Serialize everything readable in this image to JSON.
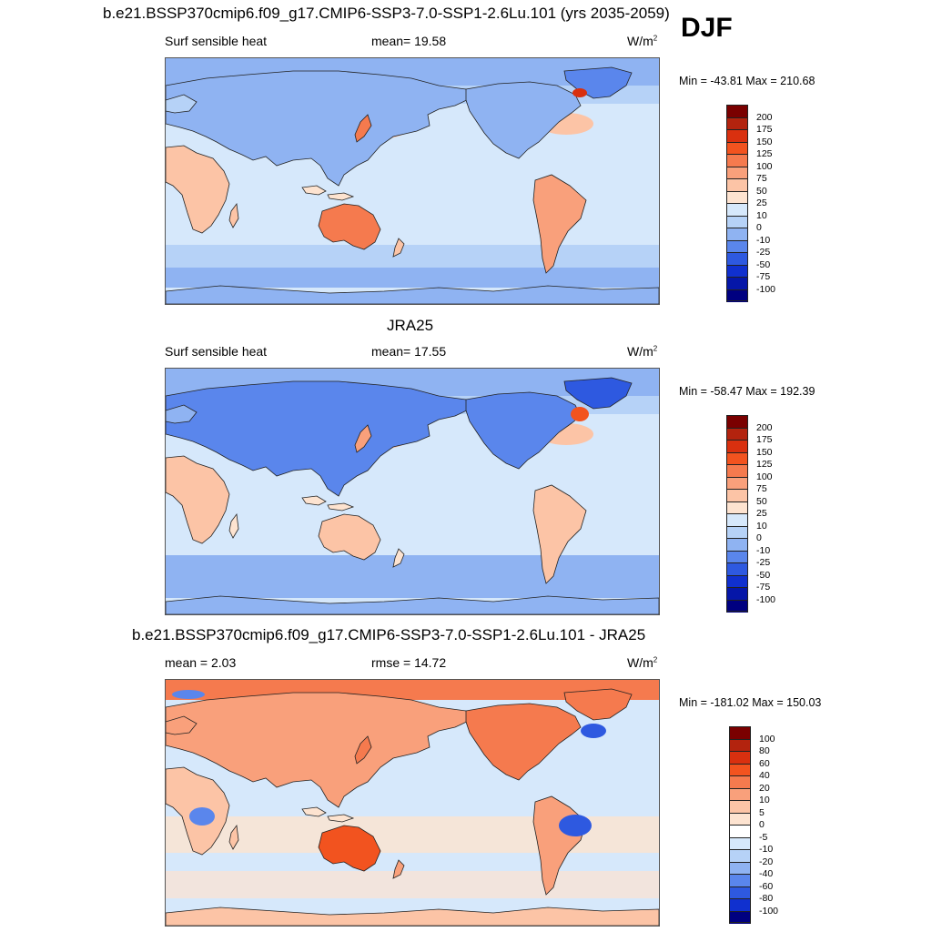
{
  "season": "DJF",
  "panels": [
    {
      "id": "model",
      "title": "b.e21.BSSP370cmip6.f09_g17.CMIP6-SSP3-7.0-SSP1-2.6Lu.101 (yrs 2035-2059)",
      "left_label": "Surf sensible heat",
      "center_label": "mean=  19.58",
      "units": "W/m",
      "units_sup": "2",
      "minmax": "Min = -43.81 Max = 210.68",
      "colorbar": {
        "labels": [
          "200",
          "175",
          "150",
          "125",
          "100",
          "75",
          "50",
          "25",
          "10",
          "0",
          "-10",
          "-25",
          "-50",
          "-75",
          "-100"
        ],
        "colors": [
          "#7a0000",
          "#b3230e",
          "#d9300f",
          "#f2531f",
          "#f57a4e",
          "#f9a07b",
          "#fcc4a6",
          "#fde3d0",
          "#d6e8fb",
          "#b6d2f7",
          "#8fb3f2",
          "#5a86ec",
          "#2e59e0",
          "#1030cf",
          "#0516a8",
          "#000080"
        ]
      },
      "map_style": "mean"
    },
    {
      "id": "obs",
      "title": "JRA25",
      "left_label": "Surf sensible heat",
      "center_label": "mean=  17.55",
      "units": "W/m",
      "units_sup": "2",
      "minmax": "Min = -58.47 Max = 192.39",
      "colorbar": {
        "labels": [
          "200",
          "175",
          "150",
          "125",
          "100",
          "75",
          "50",
          "25",
          "10",
          "0",
          "-10",
          "-25",
          "-50",
          "-75",
          "-100"
        ],
        "colors": [
          "#7a0000",
          "#b3230e",
          "#d9300f",
          "#f2531f",
          "#f57a4e",
          "#f9a07b",
          "#fcc4a6",
          "#fde3d0",
          "#d6e8fb",
          "#b6d2f7",
          "#8fb3f2",
          "#5a86ec",
          "#2e59e0",
          "#1030cf",
          "#0516a8",
          "#000080"
        ]
      },
      "map_style": "obs"
    },
    {
      "id": "diff",
      "title": "b.e21.BSSP370cmip6.f09_g17.CMIP6-SSP3-7.0-SSP1-2.6Lu.101 - JRA25",
      "left_label": "mean =   2.03",
      "center_label": "rmse =  14.72",
      "units": "W/m",
      "units_sup": "2",
      "minmax": "Min = -181.02 Max = 150.03",
      "colorbar": {
        "labels": [
          "100",
          "80",
          "60",
          "40",
          "20",
          "10",
          "5",
          "0",
          "-5",
          "-10",
          "-20",
          "-40",
          "-60",
          "-80",
          "-100"
        ],
        "colors": [
          "#7a0000",
          "#b3230e",
          "#d9300f",
          "#f2531f",
          "#f57a4e",
          "#f9a07b",
          "#fcc4a6",
          "#fde3d0",
          "#ffffff",
          "#d6e8fb",
          "#b6d2f7",
          "#8fb3f2",
          "#5a86ec",
          "#2e59e0",
          "#1030cf",
          "#000080"
        ]
      },
      "map_style": "diff"
    }
  ]
}
